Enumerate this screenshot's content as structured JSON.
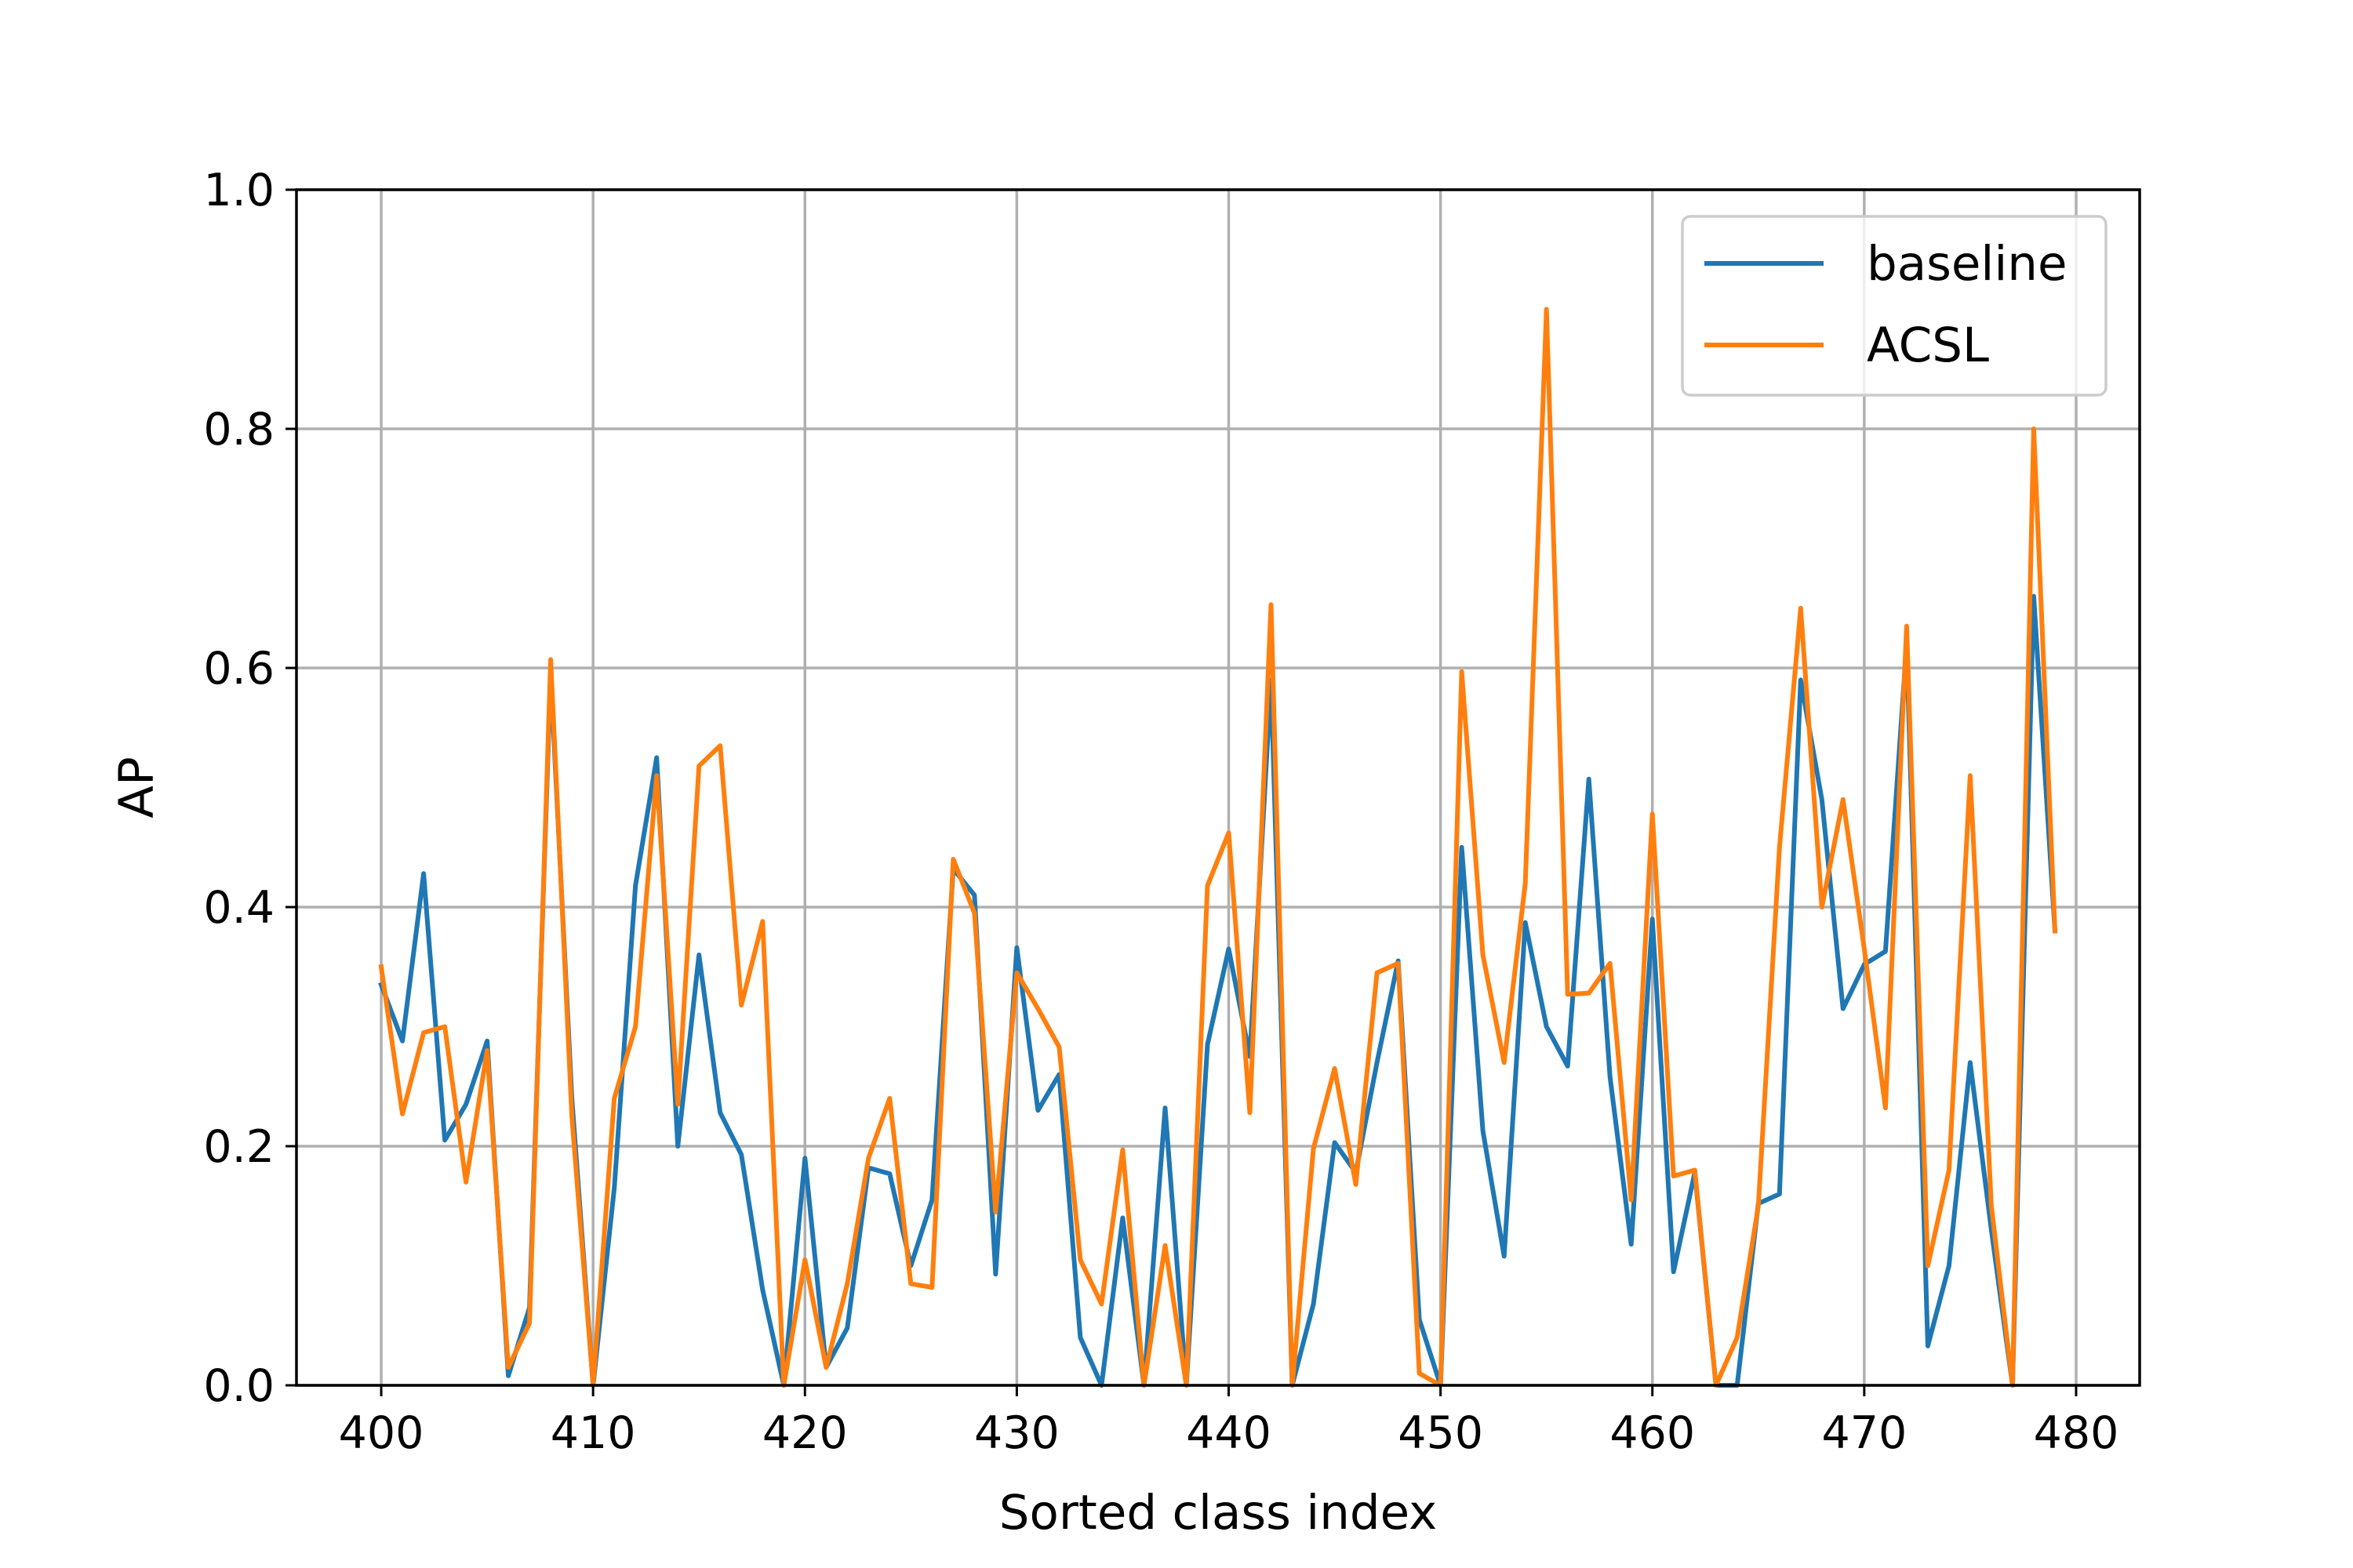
{
  "chart_data": {
    "type": "line",
    "title": "",
    "xlabel": "Sorted class index",
    "ylabel": "AP",
    "xlim": [
      396,
      483
    ],
    "ylim": [
      0.0,
      1.0
    ],
    "x_ticks": [
      400,
      410,
      420,
      430,
      440,
      450,
      460,
      470,
      480
    ],
    "x_tick_labels": [
      "400",
      "410",
      "420",
      "430",
      "440",
      "450",
      "460",
      "470",
      "480"
    ],
    "y_ticks": [
      0.0,
      0.2,
      0.4,
      0.6,
      0.8,
      1.0
    ],
    "y_tick_labels": [
      "0.0",
      "0.2",
      "0.4",
      "0.6",
      "0.8",
      "1.0"
    ],
    "grid": true,
    "legend_position": "top-right",
    "x": [
      400,
      401,
      402,
      403,
      404,
      405,
      406,
      407,
      408,
      409,
      410,
      411,
      412,
      413,
      414,
      415,
      416,
      417,
      418,
      419,
      420,
      421,
      422,
      423,
      424,
      425,
      426,
      427,
      428,
      429,
      430,
      431,
      432,
      433,
      434,
      435,
      436,
      437,
      438,
      439,
      440,
      441,
      442,
      443,
      444,
      445,
      446,
      447,
      448,
      449,
      450,
      451,
      452,
      453,
      454,
      455,
      456,
      457,
      458,
      459,
      460,
      461,
      462,
      463,
      464,
      465,
      466,
      467,
      468,
      469,
      470,
      471,
      472,
      473,
      474,
      475,
      476,
      477,
      478,
      479
    ],
    "series": [
      {
        "name": "baseline",
        "color": "#1f77b4",
        "values": [
          0.335,
          0.288,
          0.428,
          0.205,
          0.235,
          0.288,
          0.008,
          0.065,
          0.595,
          0.24,
          0.0,
          0.165,
          0.418,
          0.525,
          0.2,
          0.36,
          0.228,
          0.193,
          0.08,
          0.0,
          0.19,
          0.015,
          0.048,
          0.182,
          0.177,
          0.1,
          0.155,
          0.432,
          0.41,
          0.093,
          0.366,
          0.23,
          0.26,
          0.04,
          0.0,
          0.14,
          0.0,
          0.232,
          0.0,
          0.285,
          0.365,
          0.275,
          0.59,
          0.0,
          0.068,
          0.203,
          0.178,
          0.27,
          0.355,
          0.055,
          0.0,
          0.45,
          0.213,
          0.108,
          0.387,
          0.3,
          0.267,
          0.507,
          0.258,
          0.118,
          0.39,
          0.095,
          0.178,
          0.0,
          0.0,
          0.152,
          0.16,
          0.59,
          0.49,
          0.315,
          0.352,
          0.363,
          0.62,
          0.033,
          0.1,
          0.27,
          0.13,
          0.0,
          0.66,
          0.38
        ]
      },
      {
        "name": "ACSL",
        "color": "#ff7f0e",
        "values": [
          0.35,
          0.227,
          0.295,
          0.3,
          0.17,
          0.28,
          0.015,
          0.052,
          0.607,
          0.225,
          0.0,
          0.24,
          0.3,
          0.51,
          0.235,
          0.518,
          0.535,
          0.318,
          0.388,
          0.0,
          0.105,
          0.015,
          0.085,
          0.19,
          0.24,
          0.085,
          0.082,
          0.44,
          0.395,
          0.145,
          0.345,
          0.315,
          0.283,
          0.105,
          0.068,
          0.197,
          0.0,
          0.117,
          0.0,
          0.418,
          0.462,
          0.228,
          0.653,
          0.0,
          0.198,
          0.265,
          0.168,
          0.345,
          0.353,
          0.01,
          0.0,
          0.597,
          0.36,
          0.27,
          0.42,
          0.9,
          0.327,
          0.328,
          0.353,
          0.155,
          0.478,
          0.175,
          0.18,
          0.0,
          0.04,
          0.15,
          0.45,
          0.65,
          0.4,
          0.49,
          0.365,
          0.232,
          0.635,
          0.1,
          0.18,
          0.51,
          0.15,
          0.0,
          0.8,
          0.38
        ]
      }
    ]
  }
}
